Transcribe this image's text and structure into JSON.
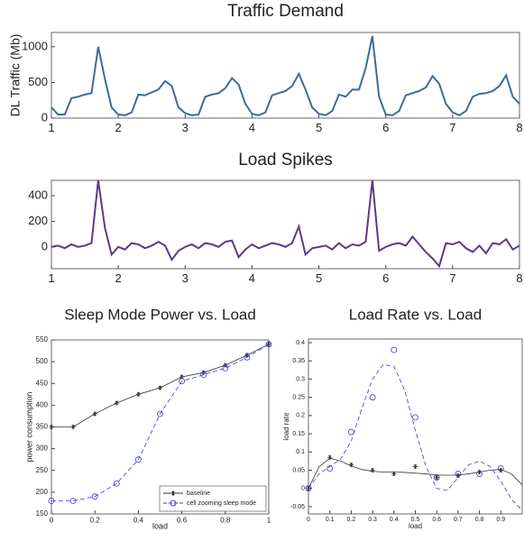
{
  "chart_data": [
    {
      "type": "line",
      "title": "Traffic Demand",
      "ylabel": "DL Traffic (Mb)",
      "x": [
        1,
        1.1,
        1.2,
        1.3,
        1.4,
        1.5,
        1.6,
        1.7,
        1.8,
        1.9,
        2,
        2.1,
        2.2,
        2.3,
        2.4,
        2.5,
        2.6,
        2.7,
        2.8,
        2.9,
        3,
        3.1,
        3.2,
        3.3,
        3.4,
        3.5,
        3.6,
        3.7,
        3.8,
        3.9,
        4,
        4.1,
        4.2,
        4.3,
        4.4,
        4.5,
        4.6,
        4.7,
        4.8,
        4.9,
        5,
        5.1,
        5.2,
        5.3,
        5.4,
        5.5,
        5.6,
        5.7,
        5.8,
        5.9,
        6,
        6.1,
        6.2,
        6.3,
        6.4,
        6.5,
        6.6,
        6.7,
        6.8,
        6.9,
        7,
        7.1,
        7.2,
        7.3,
        7.4,
        7.5,
        7.6,
        7.7,
        7.8,
        7.9,
        8
      ],
      "series": [
        {
          "color": "#3f6b98",
          "values": [
            150,
            50,
            50,
            280,
            300,
            330,
            350,
            1000,
            550,
            150,
            50,
            40,
            80,
            330,
            320,
            360,
            400,
            520,
            450,
            150,
            70,
            40,
            50,
            300,
            330,
            350,
            420,
            560,
            470,
            200,
            60,
            40,
            80,
            320,
            350,
            380,
            450,
            620,
            400,
            150,
            60,
            40,
            100,
            330,
            300,
            400,
            400,
            700,
            1150,
            300,
            50,
            40,
            100,
            320,
            350,
            380,
            430,
            590,
            480,
            200,
            80,
            40,
            100,
            300,
            340,
            350,
            380,
            450,
            600,
            300,
            200
          ]
        }
      ],
      "xlim": [
        1,
        8
      ],
      "xticks": [
        1,
        2,
        3,
        4,
        5,
        6,
        7,
        8
      ],
      "ylim": [
        0,
        1200
      ],
      "yticks": [
        0,
        500,
        1000
      ]
    },
    {
      "type": "line",
      "title": "Load Spikes",
      "x": [
        1,
        1.1,
        1.2,
        1.3,
        1.4,
        1.5,
        1.6,
        1.7,
        1.8,
        1.9,
        2,
        2.1,
        2.2,
        2.3,
        2.4,
        2.5,
        2.6,
        2.7,
        2.8,
        2.9,
        3,
        3.1,
        3.2,
        3.3,
        3.4,
        3.5,
        3.6,
        3.7,
        3.8,
        3.9,
        4,
        4.1,
        4.2,
        4.3,
        4.4,
        4.5,
        4.6,
        4.7,
        4.8,
        4.9,
        5,
        5.1,
        5.2,
        5.3,
        5.4,
        5.5,
        5.6,
        5.7,
        5.8,
        5.9,
        6,
        6.1,
        6.2,
        6.3,
        6.4,
        6.5,
        6.6,
        6.7,
        6.8,
        6.9,
        7,
        7.1,
        7.2,
        7.3,
        7.4,
        7.5,
        7.6,
        7.7,
        7.8,
        7.9,
        8
      ],
      "series": [
        {
          "color": "#5b3a87",
          "values": [
            0,
            10,
            -10,
            20,
            0,
            10,
            30,
            520,
            150,
            -60,
            0,
            -20,
            30,
            20,
            -10,
            10,
            40,
            10,
            -100,
            -30,
            0,
            20,
            -10,
            30,
            20,
            0,
            40,
            50,
            -80,
            -20,
            20,
            -10,
            10,
            30,
            20,
            0,
            30,
            160,
            -60,
            -10,
            0,
            10,
            -20,
            30,
            -10,
            20,
            10,
            40,
            520,
            -30,
            0,
            20,
            30,
            10,
            80,
            20,
            -40,
            -90,
            -150,
            30,
            20,
            40,
            -10,
            -40,
            10,
            -50,
            30,
            20,
            60,
            -20,
            10
          ]
        }
      ],
      "xlim": [
        1,
        8
      ],
      "xticks": [
        1,
        2,
        3,
        4,
        5,
        6,
        7,
        8
      ],
      "ylim": [
        -170,
        520
      ],
      "yticks": [
        0,
        200,
        400
      ]
    },
    {
      "type": "line",
      "title": "Sleep Mode Power vs. Load",
      "xlabel": "load",
      "ylabel": "power consumption",
      "x": [
        0,
        0.1,
        0.2,
        0.3,
        0.4,
        0.5,
        0.6,
        0.7,
        0.8,
        0.9,
        1
      ],
      "series": [
        {
          "name": "baseline",
          "color": "#333333",
          "marker": "star",
          "line": "solid",
          "values": [
            350,
            350,
            380,
            405,
            425,
            440,
            465,
            475,
            492,
            515,
            540
          ]
        },
        {
          "name": "cell zooming sleep mode",
          "color": "#3b3bd6",
          "marker": "circle",
          "line": "dashed",
          "values": [
            180,
            180,
            190,
            220,
            275,
            380,
            455,
            470,
            485,
            510,
            540
          ]
        }
      ],
      "xlim": [
        0,
        1
      ],
      "xticks": [
        0,
        0.2,
        0.4,
        0.6,
        0.8,
        1
      ],
      "ylim": [
        150,
        550
      ],
      "yticks": [
        150,
        200,
        250,
        300,
        350,
        400,
        450,
        500,
        550
      ],
      "legend": "lower right"
    },
    {
      "type": "line",
      "title": "Load Rate vs. Load",
      "xlabel": "load",
      "ylabel": "load rate",
      "series": [
        {
          "color": "#333333",
          "marker": "star",
          "x": [
            0,
            0.1,
            0.2,
            0.3,
            0.4,
            0.5,
            0.6,
            0.7,
            0.8,
            0.9
          ],
          "values": [
            0,
            0.085,
            0.065,
            0.05,
            0.04,
            0.06,
            0.03,
            0.035,
            0.045,
            0.05
          ]
        },
        {
          "color": "#3b3bd6",
          "marker": "circle",
          "x": [
            0,
            0.1,
            0.2,
            0.3,
            0.4,
            0.5,
            0.6,
            0.7,
            0.8,
            0.9
          ],
          "values": [
            0,
            0.055,
            0.155,
            0.25,
            0.38,
            0.195,
            0.03,
            0.04,
            0.04,
            0.055
          ]
        },
        {
          "color": "#333333",
          "line": "solid",
          "x": [
            0,
            0.05,
            0.1,
            0.15,
            0.2,
            0.25,
            0.3,
            0.35,
            0.4,
            0.45,
            0.5,
            0.55,
            0.6,
            0.65,
            0.7,
            0.75,
            0.8,
            0.85,
            0.9,
            0.95,
            1
          ],
          "values": [
            0,
            0.06,
            0.083,
            0.075,
            0.062,
            0.052,
            0.047,
            0.045,
            0.045,
            0.044,
            0.042,
            0.04,
            0.037,
            0.036,
            0.037,
            0.04,
            0.045,
            0.05,
            0.052,
            0.04,
            0.01
          ]
        },
        {
          "color": "#3b3bd6",
          "line": "dashed",
          "x": [
            0,
            0.05,
            0.1,
            0.15,
            0.2,
            0.25,
            0.3,
            0.35,
            0.4,
            0.45,
            0.5,
            0.55,
            0.6,
            0.65,
            0.7,
            0.75,
            0.8,
            0.85,
            0.9,
            0.95,
            1
          ],
          "values": [
            0,
            0.04,
            0.06,
            0.08,
            0.13,
            0.22,
            0.3,
            0.34,
            0.335,
            0.27,
            0.16,
            0.06,
            0,
            -0.005,
            0.03,
            0.065,
            0.075,
            0.06,
            0.02,
            -0.03,
            -0.06
          ]
        }
      ],
      "xlim": [
        0,
        1
      ],
      "xticks": [
        0,
        0.1,
        0.2,
        0.3,
        0.4,
        0.5,
        0.6,
        0.7,
        0.8,
        0.9
      ],
      "ylim": [
        -0.07,
        0.41
      ],
      "yticks": [
        -0.05,
        0,
        0.05,
        0.1,
        0.15,
        0.2,
        0.25,
        0.3,
        0.35,
        0.4
      ]
    }
  ]
}
